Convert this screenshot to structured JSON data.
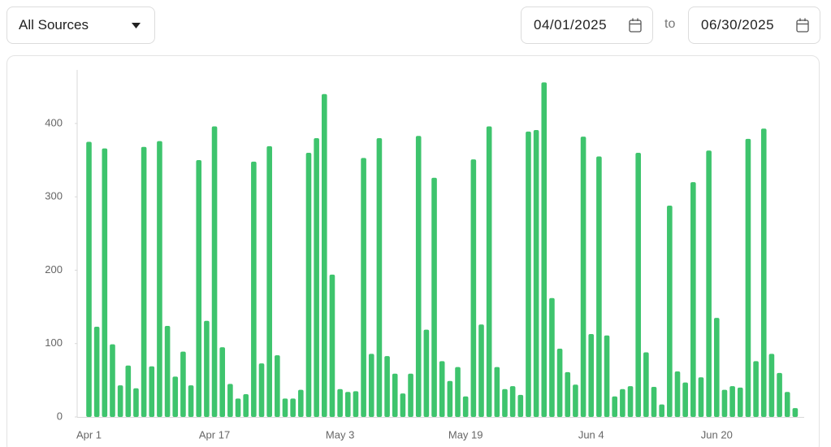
{
  "controls": {
    "source": "All Sources",
    "start_date": "04/01/2025",
    "separator": "to",
    "end_date": "06/30/2025"
  },
  "chart_data": {
    "type": "bar",
    "color": "#3ec46d",
    "categories": [
      "Apr 1",
      null,
      null,
      null,
      null,
      null,
      null,
      null,
      null,
      null,
      null,
      null,
      null,
      null,
      null,
      null,
      "Apr 17",
      null,
      null,
      null,
      null,
      null,
      null,
      null,
      null,
      null,
      null,
      null,
      null,
      null,
      null,
      null,
      "May 3",
      null,
      null,
      null,
      null,
      null,
      null,
      null,
      null,
      null,
      null,
      null,
      null,
      null,
      null,
      null,
      "May 19",
      null,
      null,
      null,
      null,
      null,
      null,
      null,
      null,
      null,
      null,
      null,
      null,
      null,
      null,
      null,
      "Jun 4",
      null,
      null,
      null,
      null,
      null,
      null,
      null,
      null,
      null,
      null,
      null,
      null,
      null,
      null,
      null,
      "Jun 20",
      null,
      null,
      null,
      null,
      null,
      null,
      null,
      null,
      null,
      null
    ],
    "values": [
      375,
      123,
      366,
      99,
      43,
      70,
      39,
      368,
      69,
      376,
      124,
      55,
      89,
      43,
      350,
      131,
      396,
      95,
      45,
      25,
      31,
      348,
      73,
      369,
      84,
      25,
      25,
      37,
      360,
      380,
      440,
      194,
      38,
      34,
      35,
      353,
      86,
      380,
      83,
      59,
      32,
      59,
      383,
      119,
      326,
      76,
      49,
      68,
      28,
      351,
      126,
      396,
      68,
      38,
      42,
      30,
      389,
      391,
      456,
      162,
      93,
      61,
      44,
      382,
      113,
      355,
      111,
      28,
      38,
      42,
      360,
      88,
      41,
      17,
      288,
      62,
      47,
      320,
      54,
      363,
      135,
      37,
      42,
      40,
      379,
      76,
      393,
      86,
      60,
      34,
      12
    ],
    "ylim": [
      0,
      473
    ],
    "yticks": [
      0,
      100,
      200,
      300,
      400
    ],
    "grid": false
  }
}
